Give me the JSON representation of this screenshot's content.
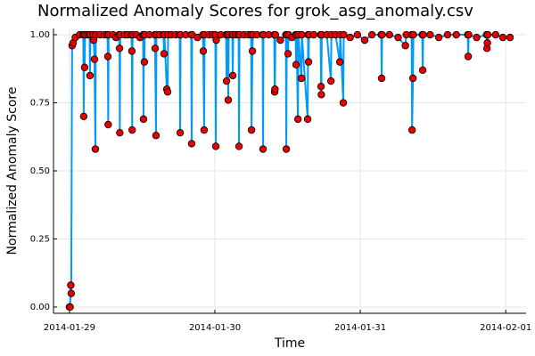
{
  "chart_data": {
    "type": "line",
    "title": "Normalized Anomaly Scores for grok_asg_anomaly.csv",
    "xlabel": "Time",
    "ylabel": "Normalized Anomaly Score",
    "grid": true,
    "markers": true,
    "marker_color": "#e60000",
    "xlim": [
      -0.11,
      3.14
    ],
    "ylim": [
      -0.023,
      1.023
    ],
    "xticks": [
      {
        "value": 0,
        "label": "2014-01-29"
      },
      {
        "value": 1,
        "label": "2014-01-30"
      },
      {
        "value": 2,
        "label": "2014-01-31"
      },
      {
        "value": 3,
        "label": "2014-02-01"
      }
    ],
    "yticks": [
      {
        "value": 0,
        "label": "0.00"
      },
      {
        "value": 0.25,
        "label": "0.25"
      },
      {
        "value": 0.5,
        "label": "0.50"
      },
      {
        "value": 0.75,
        "label": "0.75"
      },
      {
        "value": 1,
        "label": "1.00"
      }
    ],
    "x": [
      0,
      0.004,
      0.009,
      0.012,
      0.018,
      0.025,
      0.04,
      0.07,
      0.095,
      0.098,
      0.101,
      0.104,
      0.107,
      0.125,
      0.138,
      0.141,
      0.144,
      0.163,
      0.166,
      0.172,
      0.178,
      0.181,
      0.21,
      0.24,
      0.261,
      0.264,
      0.266,
      0.269,
      0.3,
      0.32,
      0.341,
      0.344,
      0.346,
      0.349,
      0.38,
      0.4,
      0.426,
      0.429,
      0.431,
      0.434,
      0.46,
      0.485,
      0.506,
      0.509,
      0.512,
      0.515,
      0.518,
      0.55,
      0.586,
      0.589,
      0.595,
      0.598,
      0.62,
      0.647,
      0.65,
      0.653,
      0.669,
      0.675,
      0.678,
      0.7,
      0.73,
      0.758,
      0.761,
      0.764,
      0.8,
      0.837,
      0.84,
      0.843,
      0.88,
      0.917,
      0.92,
      0.926,
      0.929,
      0.96,
      0.985,
      1.003,
      1.006,
      1.009,
      1.04,
      1.077,
      1.08,
      1.086,
      1.092,
      1.095,
      1.12,
      1.123,
      1.126,
      1.145,
      1.163,
      1.166,
      1.169,
      1.2,
      1.23,
      1.249,
      1.252,
      1.258,
      1.261,
      1.29,
      1.328,
      1.331,
      1.334,
      1.37,
      1.408,
      1.411,
      1.413,
      1.416,
      1.45,
      1.488,
      1.491,
      1.494,
      1.503,
      1.506,
      1.53,
      1.555,
      1.558,
      1.561,
      1.571,
      1.574,
      1.595,
      1.598,
      1.638,
      1.641,
      1.644,
      1.647,
      1.68,
      1.727,
      1.73,
      1.732,
      1.735,
      1.77,
      1.798,
      1.801,
      1.83,
      1.859,
      1.862,
      1.883,
      1.886,
      1.93,
      1.98,
      2.03,
      2.08,
      2.144,
      2.147,
      2.15,
      2.2,
      2.26,
      2.31,
      2.316,
      2.353,
      2.356,
      2.362,
      2.365,
      2.426,
      2.429,
      2.432,
      2.48,
      2.54,
      2.6,
      2.66,
      2.739,
      2.742,
      2.745,
      2.8,
      2.868,
      2.871,
      2.874,
      2.877,
      2.93,
      2.98,
      3.03
    ],
    "series": [
      {
        "color": "#009af9",
        "values": [
          0,
          0,
          0.08,
          0.05,
          0.96,
          0.97,
          0.99,
          1,
          1,
          0.7,
          1,
          0.88,
          1,
          1,
          1,
          0.85,
          1,
          1,
          0.98,
          0.91,
          0.58,
          1,
          1,
          1,
          1,
          0.92,
          0.67,
          1,
          1,
          0.99,
          1,
          0.95,
          0.64,
          1,
          1,
          1,
          1,
          0.94,
          0.65,
          1,
          1,
          0.99,
          1,
          0.69,
          1,
          0.9,
          1,
          1,
          1,
          0.95,
          0.63,
          1,
          1,
          1,
          0.93,
          1,
          0.8,
          0.79,
          1,
          1,
          1,
          1,
          0.64,
          1,
          1,
          1,
          0.6,
          1,
          0.99,
          1,
          0.94,
          0.65,
          1,
          1,
          1,
          1,
          0.59,
          0.98,
          1,
          1,
          0.83,
          1,
          0.76,
          1,
          1,
          0.85,
          1,
          1,
          1,
          0.59,
          1,
          1,
          1,
          1,
          0.65,
          0.94,
          1,
          1,
          1,
          0.58,
          1,
          1,
          1,
          0.79,
          0.8,
          1,
          0.98,
          1,
          0.58,
          1,
          0.93,
          1,
          0.99,
          1,
          0.89,
          1,
          0.69,
          1,
          0.84,
          1,
          0.69,
          1,
          0.9,
          1,
          1,
          1,
          0.81,
          0.78,
          1,
          1,
          0.83,
          1,
          1,
          0.9,
          1,
          0.75,
          1,
          0.99,
          1,
          0.98,
          1,
          1,
          0.84,
          1,
          1,
          0.99,
          0.96,
          1,
          1,
          0.65,
          0.84,
          1,
          1,
          0.87,
          1,
          1,
          0.99,
          1,
          1,
          1,
          0.92,
          1,
          0.99,
          1,
          0.95,
          0.97,
          1,
          1,
          0.99,
          0.99
        ]
      }
    ]
  }
}
